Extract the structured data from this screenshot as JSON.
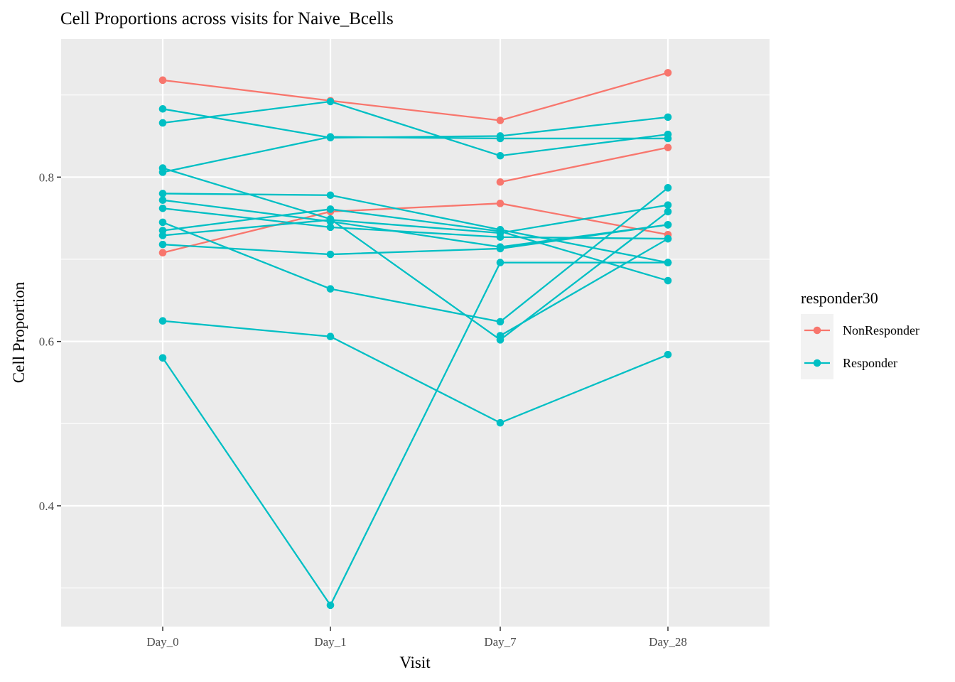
{
  "chart_data": {
    "type": "line",
    "title": "Cell Proportions across visits for Naive_Bcells",
    "xlabel": "Visit",
    "ylabel": "Cell Proportion",
    "categories": [
      "Day_0",
      "Day_1",
      "Day_7",
      "Day_28"
    ],
    "ylim": [
      0.253,
      0.968
    ],
    "yticks": [
      0.4,
      0.6,
      0.8
    ],
    "ytick_labels": [
      "0.4",
      "0.6",
      "0.8"
    ],
    "grid": true,
    "legend": {
      "title": "responder30",
      "placement": "right",
      "entries": [
        {
          "label": "NonResponder",
          "color": "#F8766D"
        },
        {
          "label": "Responder",
          "color": "#00BFC4"
        }
      ]
    },
    "colors": {
      "NonResponder": "#F8766D",
      "Responder": "#00BFC4",
      "panel": "#EBEBEB",
      "grid": "#FFFFFF"
    },
    "series": [
      {
        "group": "NonResponder",
        "values": [
          0.918,
          0.893,
          0.869,
          0.927
        ]
      },
      {
        "group": "NonResponder",
        "values": [
          0.708,
          0.758,
          0.768,
          0.73
        ]
      },
      {
        "group": "NonResponder",
        "values": [
          null,
          null,
          0.794,
          0.836
        ]
      },
      {
        "group": "Responder",
        "values": [
          0.883,
          0.848,
          0.85,
          0.873
        ]
      },
      {
        "group": "Responder",
        "values": [
          0.866,
          0.892,
          0.826,
          0.852
        ]
      },
      {
        "group": "Responder",
        "values": [
          0.806,
          0.849,
          0.847,
          0.847
        ]
      },
      {
        "group": "Responder",
        "values": [
          0.811,
          0.749,
          0.602,
          0.758
        ]
      },
      {
        "group": "Responder",
        "values": [
          0.78,
          0.778,
          0.736,
          0.696
        ]
      },
      {
        "group": "Responder",
        "values": [
          0.772,
          0.746,
          0.715,
          0.742
        ]
      },
      {
        "group": "Responder",
        "values": [
          0.762,
          0.739,
          0.727,
          0.725
        ]
      },
      {
        "group": "Responder",
        "values": [
          0.735,
          0.761,
          0.734,
          0.674
        ]
      },
      {
        "group": "Responder",
        "values": [
          0.729,
          0.748,
          0.732,
          0.766
        ]
      },
      {
        "group": "Responder",
        "values": [
          0.718,
          0.706,
          0.713,
          0.742
        ]
      },
      {
        "group": "Responder",
        "values": [
          0.745,
          0.664,
          0.624,
          0.787
        ]
      },
      {
        "group": "Responder",
        "values": [
          0.625,
          0.606,
          0.501,
          0.584
        ]
      },
      {
        "group": "Responder",
        "values": [
          0.58,
          0.279,
          0.696,
          0.696
        ]
      },
      {
        "group": "Responder",
        "values": [
          null,
          null,
          0.607,
          0.725
        ]
      }
    ]
  }
}
